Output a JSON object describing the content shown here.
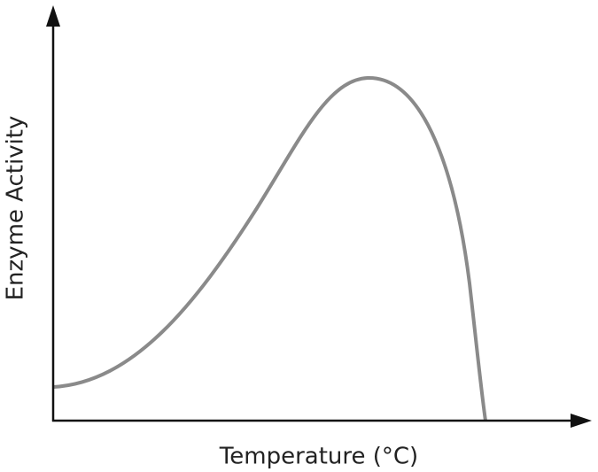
{
  "chart_data": {
    "type": "line",
    "x_label": "Temperature  (°C)",
    "y_label": "Enzyme Activity"
  }
}
